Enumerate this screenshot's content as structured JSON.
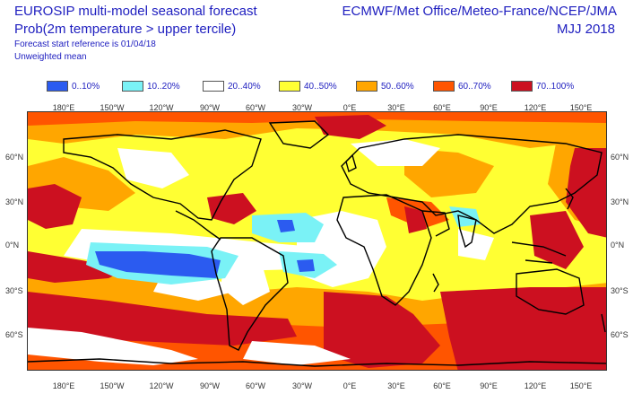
{
  "header": {
    "title_line1": "EUROSIP multi-model seasonal forecast",
    "title_line2": "Prob(2m temperature > upper tercile)",
    "forecast_start": "Forecast start reference is 01/04/18",
    "weighting": "Unweighted mean",
    "centres": "ECMWF/Met Office/Meteo-France/NCEP/JMA",
    "season": "MJJ 2018"
  },
  "legend": [
    {
      "label": "0..10%",
      "color": "#2b5bf0"
    },
    {
      "label": "10..20%",
      "color": "#7af2f6"
    },
    {
      "label": "20..40%",
      "color": "#ffffff"
    },
    {
      "label": "40..50%",
      "color": "#ffff33"
    },
    {
      "label": "50..60%",
      "color": "#ffa600"
    },
    {
      "label": "60..70%",
      "color": "#ff5500"
    },
    {
      "label": "70..100%",
      "color": "#cc1020"
    }
  ],
  "longitude_labels": [
    "180°E",
    "150°W",
    "120°W",
    "90°W",
    "60°W",
    "30°W",
    "0°E",
    "30°E",
    "60°E",
    "90°E",
    "120°E",
    "150°E"
  ],
  "latitude_labels": [
    "60°N",
    "30°N",
    "0°N",
    "30°S",
    "60°S"
  ],
  "colors": {
    "text": "#2020c0",
    "coastline": "#000000",
    "frame": "#333333"
  }
}
